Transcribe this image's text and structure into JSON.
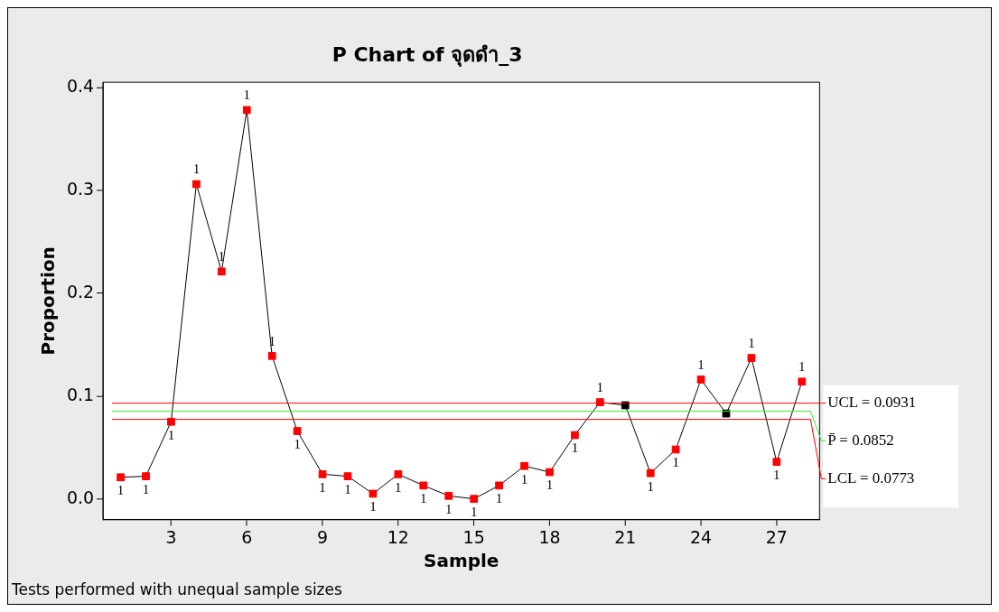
{
  "chart_data": {
    "type": "line",
    "title": "P Chart of จุดดำ_3",
    "xlabel": "Sample",
    "ylabel": "Proportion",
    "x": [
      1,
      2,
      3,
      4,
      5,
      6,
      7,
      8,
      9,
      10,
      11,
      12,
      13,
      14,
      15,
      16,
      17,
      18,
      19,
      20,
      21,
      22,
      23,
      24,
      25,
      26,
      27,
      28
    ],
    "series": [
      {
        "color": "#000000",
        "values": [
          0.021,
          0.022,
          0.075,
          0.306,
          0.221,
          0.378,
          0.139,
          0.066,
          0.024,
          0.022,
          0.005,
          0.024,
          0.013,
          0.003,
          0.0,
          0.013,
          0.032,
          0.026,
          0.062,
          0.094,
          0.091,
          0.025,
          0.048,
          0.116,
          0.083,
          0.137,
          0.036,
          0.114
        ],
        "colors": [
          "#ff0000",
          "#ff0000",
          "#ff0000",
          "#ff0000",
          "#ff0000",
          "#ff0000",
          "#ff0000",
          "#ff0000",
          "#ff0000",
          "#ff0000",
          "#ff0000",
          "#ff0000",
          "#ff0000",
          "#ff0000",
          "#ff0000",
          "#ff0000",
          "#ff0000",
          "#ff0000",
          "#ff0000",
          "#ff0000",
          "#000000",
          "#ff0000",
          "#ff0000",
          "#ff0000",
          "#000000",
          "#ff0000",
          "#ff0000",
          "#ff0000"
        ]
      }
    ],
    "xlim": [
      0.3,
      28.7
    ],
    "xticks": [
      3,
      6,
      9,
      12,
      15,
      18,
      21,
      24,
      27
    ],
    "ylim": [
      -0.02,
      0.405
    ],
    "yticks": [
      {
        "value": 0,
        "label": "0.0"
      },
      0.1,
      0.2,
      0.3,
      0.4
    ],
    "ref_lines": [
      {
        "axis": "y",
        "value": 0.0931,
        "label": "UCL = 0.0931",
        "color": "#ff0000"
      },
      {
        "axis": "y",
        "value": 0.0852,
        "label": "P̄ = 0.0852",
        "color": "#33ee33"
      },
      {
        "axis": "y",
        "value": 0.0773,
        "label": "LCL = 0.0773",
        "color": "#ff0000"
      }
    ],
    "annotations": [
      "Tests performed with unequal sample sizes",
      {
        "text": "1",
        "x": 1,
        "y": 0.021
      },
      {
        "text": "1",
        "x": 2,
        "y": 0.022
      },
      {
        "text": "1",
        "x": 3,
        "y": 0.075
      },
      {
        "text": "1",
        "x": 4,
        "y": 0.306
      },
      {
        "text": "1",
        "x": 5,
        "y": 0.221
      },
      {
        "text": "1",
        "x": 6,
        "y": 0.378
      },
      {
        "text": "1",
        "x": 7,
        "y": 0.139
      },
      {
        "text": "1",
        "x": 8,
        "y": 0.066
      },
      {
        "text": "1",
        "x": 9,
        "y": 0.024
      },
      {
        "text": "1",
        "x": 10,
        "y": 0.022
      },
      {
        "text": "1",
        "x": 11,
        "y": 0.005
      },
      {
        "text": "1",
        "x": 12,
        "y": 0.024
      },
      {
        "text": "1",
        "x": 13,
        "y": 0.013
      },
      {
        "text": "1",
        "x": 14,
        "y": 0.003
      },
      {
        "text": "1",
        "x": 15,
        "y": 0.0
      },
      {
        "text": "1",
        "x": 16,
        "y": 0.013
      },
      {
        "text": "1",
        "x": 17,
        "y": 0.032
      },
      {
        "text": "1",
        "x": 18,
        "y": 0.026
      },
      {
        "text": "1",
        "x": 19,
        "y": 0.062
      },
      {
        "text": "1",
        "x": 20,
        "y": 0.094
      },
      {
        "text": "1",
        "x": 22,
        "y": 0.025
      },
      {
        "text": "1",
        "x": 23,
        "y": 0.048
      },
      {
        "text": "1",
        "x": 24,
        "y": 0.116
      },
      {
        "text": "1",
        "x": 26,
        "y": 0.137
      },
      {
        "text": "1",
        "x": 27,
        "y": 0.036
      },
      {
        "text": "1",
        "x": 28,
        "y": 0.114
      }
    ],
    "marker": "square",
    "line_style": "solid",
    "grid": false,
    "legend": false
  }
}
